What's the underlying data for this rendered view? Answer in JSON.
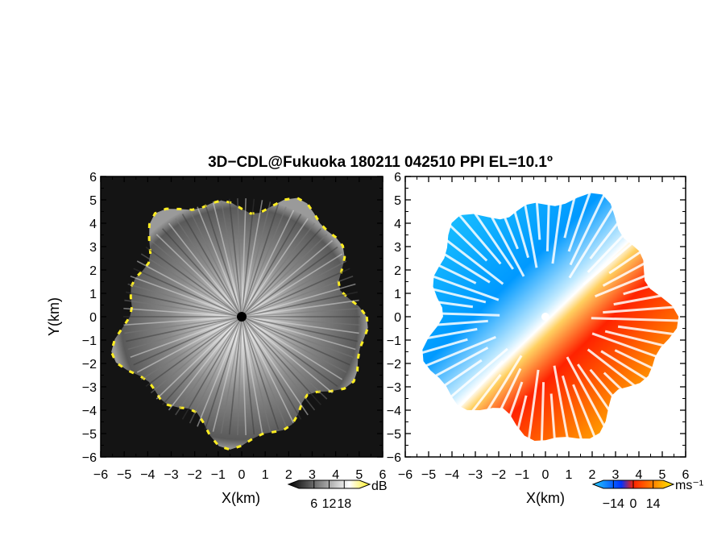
{
  "title": "3D−CDL@Fukuoka 180211 042510 PPI EL=10.1º",
  "chart_data": [
    {
      "type": "heatmap",
      "panel": "reflectivity",
      "xlabel": "X(km)",
      "ylabel": "Y(km)",
      "xlim": [
        -6,
        6
      ],
      "ylim": [
        -6,
        6
      ],
      "xticks": [
        -6,
        -5,
        -4,
        -3,
        -2,
        -1,
        0,
        1,
        2,
        3,
        4,
        5,
        6
      ],
      "yticks": [
        6,
        5,
        4,
        3,
        2,
        1,
        0,
        -1,
        -2,
        -3,
        -4,
        -5,
        -6
      ],
      "colormap": "grayscale with yellow for high values",
      "colorbar": {
        "unit": "dB",
        "tick_labels": [
          "6",
          "12",
          "18"
        ],
        "ticks": [
          6,
          12,
          18
        ],
        "range": [
          0,
          24
        ]
      },
      "max_range_km": 5.6
    },
    {
      "type": "heatmap",
      "panel": "doppler-velocity",
      "xlabel": "X(km)",
      "xlim": [
        -6,
        6
      ],
      "ylim": [
        -6,
        6
      ],
      "xticks": [
        -6,
        -5,
        -4,
        -3,
        -2,
        -1,
        0,
        1,
        2,
        3,
        4,
        5,
        6
      ],
      "yticks": [
        6,
        5,
        4,
        3,
        2,
        1,
        0,
        -1,
        -2,
        -3,
        -4,
        -5,
        -6
      ],
      "colormap": "blue (negative) to red/orange/yellow (positive)",
      "colorbar": {
        "unit": "ms⁻¹",
        "tick_labels": [
          "−14",
          "0",
          "14"
        ],
        "ticks": [
          -14,
          0,
          14
        ],
        "range": [
          -21,
          21
        ]
      },
      "max_range_km": 5.6
    }
  ],
  "colors": {
    "yellow_edge": "#ffee22",
    "blue_dark": "#0022dd",
    "blue_light": "#22ccff",
    "red": "#ff2200",
    "orange": "#ff9900",
    "yellow": "#ffee00"
  }
}
